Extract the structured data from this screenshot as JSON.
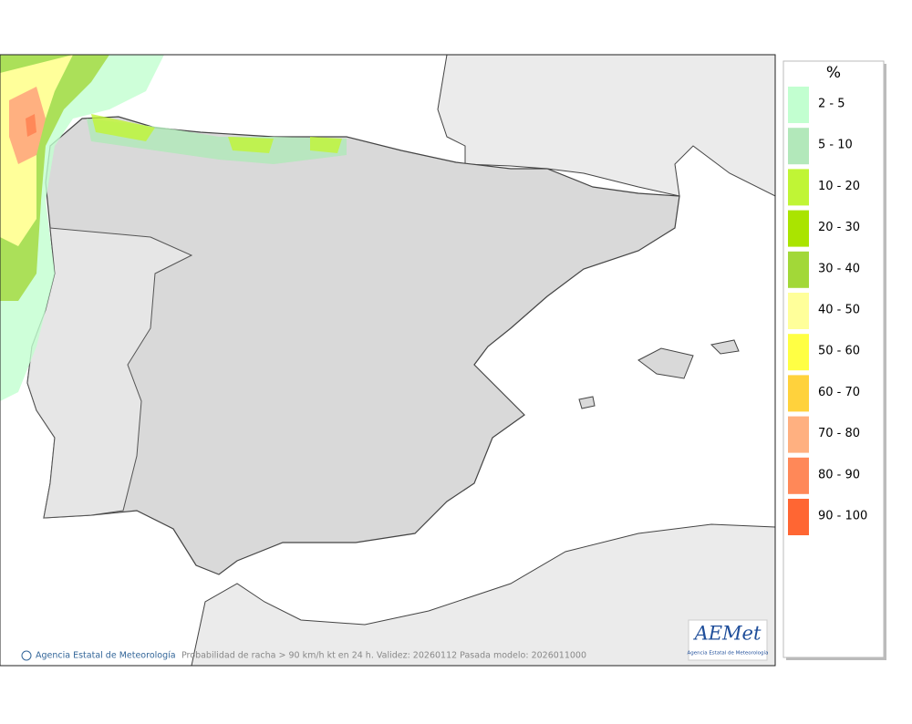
{
  "map": {
    "caption": "Probabilidad de racha > 90 km/h kt en 24 h. Validez: 20260112 Pasada modelo: 2026011000",
    "credit": "Agencia Estatal de Meteorología",
    "logo": {
      "name": "AEMet",
      "subtitle": "Agencia Estatal de Meteorología"
    }
  },
  "legend": {
    "title": "%",
    "items": [
      {
        "label": "2 - 5",
        "color": "#c2ffd0"
      },
      {
        "label": "5 - 10",
        "color": "#b2e8ba"
      },
      {
        "label": "10 - 20",
        "color": "#c0f535"
      },
      {
        "label": "20 - 30",
        "color": "#aae400"
      },
      {
        "label": "30 - 40",
        "color": "#a2d838"
      },
      {
        "label": "40 - 50",
        "color": "#ffff9a"
      },
      {
        "label": "50 - 60",
        "color": "#ffff44"
      },
      {
        "label": "60 - 70",
        "color": "#ffd23c"
      },
      {
        "label": "70 - 80",
        "color": "#ffb080"
      },
      {
        "label": "80 - 90",
        "color": "#ff8858"
      },
      {
        "label": "90 - 100",
        "color": "#ff6633"
      }
    ]
  }
}
